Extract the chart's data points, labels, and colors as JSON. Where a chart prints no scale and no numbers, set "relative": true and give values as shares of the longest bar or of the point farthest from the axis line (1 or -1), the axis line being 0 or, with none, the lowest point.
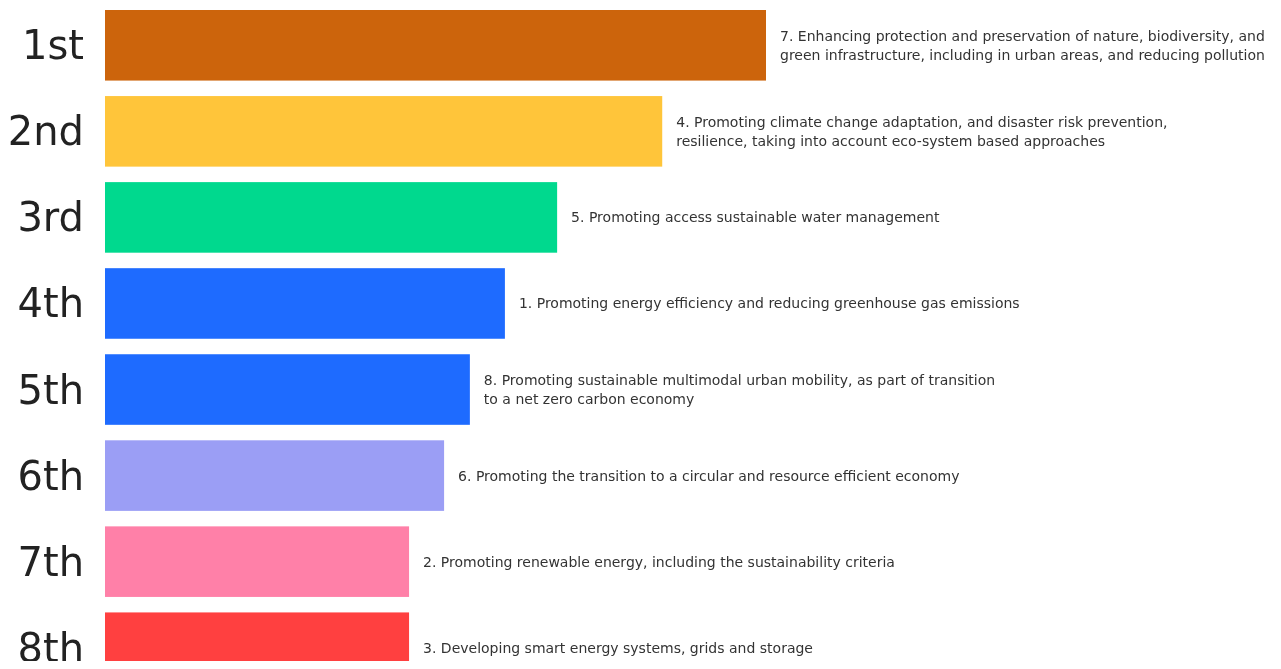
{
  "chart_data": {
    "type": "bar",
    "orientation": "horizontal",
    "relative": true,
    "categories": [
      "1st",
      "2nd",
      "3rd",
      "4th",
      "5th",
      "6th",
      "7th",
      "8th"
    ],
    "values": [
      1,
      0.843,
      0.684,
      0.605,
      0.552,
      0.513,
      0.46,
      0.46
    ],
    "colors": [
      "#cc640c",
      "#ffc53a",
      "#00d98e",
      "#1e6bff",
      "#1e6bff",
      "#9b9ef5",
      "#ff80a8",
      "#ff4040"
    ],
    "annotations": [
      {
        "text": "7. Enhancing protection and preservation of nature, biodiversity, and\ngreen infrastructure, including in urban areas, and reducing pollution",
        "x": 1,
        "y": "1st"
      },
      {
        "text": "4. Promoting climate change adaptation, and disaster risk prevention,\nresilience, taking into account eco-system based approaches",
        "x": 0.843,
        "y": "2nd"
      },
      {
        "text": "5. Promoting access sustainable water management",
        "x": 0.684,
        "y": "3rd"
      },
      {
        "text": "1. Promoting energy efficiency and reducing greenhouse gas emissions",
        "x": 0.605,
        "y": "4th"
      },
      {
        "text": "8. Promoting sustainable multimodal urban mobility, as part of transition\nto a net zero carbon economy",
        "x": 0.552,
        "y": "5th"
      },
      {
        "text": "6. Promoting the transition to a circular and resource efficient economy",
        "x": 0.513,
        "y": "6th"
      },
      {
        "text": "2. Promoting renewable energy, including the sustainability criteria",
        "x": 0.46,
        "y": "7th"
      },
      {
        "text": "3. Developing smart energy systems, grids and storage",
        "x": 0.46,
        "y": "8th"
      }
    ]
  }
}
